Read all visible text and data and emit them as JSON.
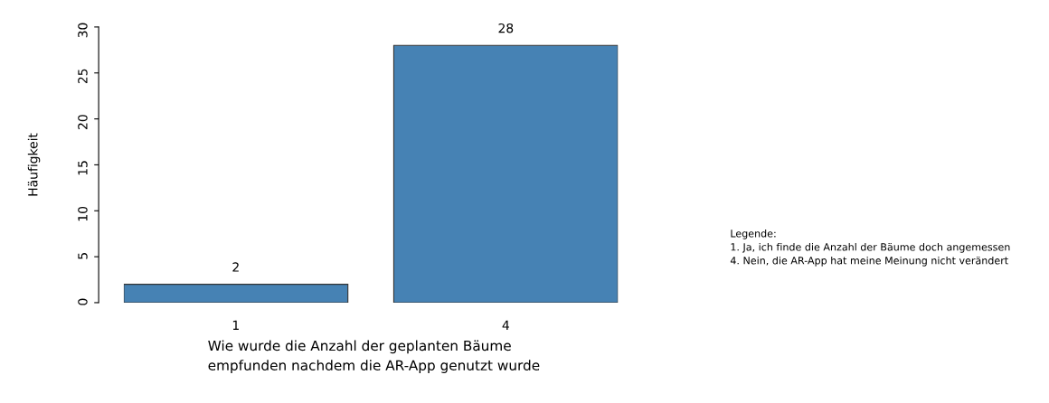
{
  "chart_data": {
    "type": "bar",
    "categories": [
      "1",
      "4"
    ],
    "values": [
      2,
      28
    ],
    "color": "#4682b4",
    "ylabel": "Häufigkeit",
    "xlabel": "Wie wurde die Anzahl der geplanten Bäume\nempfunden nachdem die AR-App genutzt wurde",
    "ylim": [
      0,
      30
    ],
    "yticks": [
      0,
      5,
      10,
      15,
      20,
      25,
      30
    ],
    "data_labels": true,
    "grid": false,
    "legend": false,
    "annotations": [
      "Legende:\n1. Ja, ich finde die Anzahl der Bäume doch angemessen\n4. Nein, die AR-App hat meine Meinung nicht verändert"
    ]
  }
}
